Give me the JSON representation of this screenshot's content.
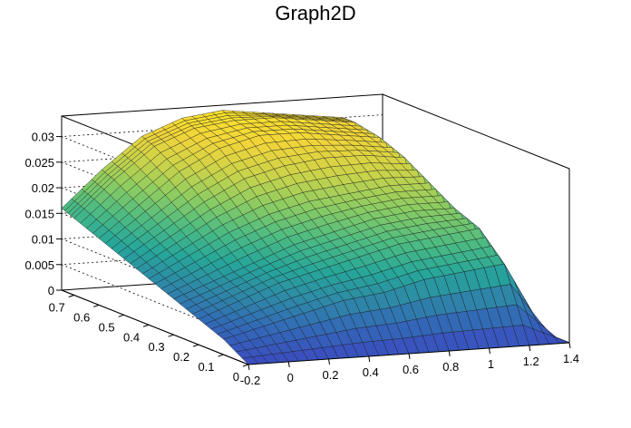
{
  "chart_data": {
    "type": "surface",
    "title": "Graph2D",
    "xlabel": "",
    "ylabel": "",
    "zlabel": "",
    "xlim": [
      -0.2,
      1.4
    ],
    "ylim": [
      0,
      0.75
    ],
    "zlim": [
      0,
      0.034
    ],
    "x_ticks": [
      "-0.2",
      "0",
      "0.2",
      "0.4",
      "0.6",
      "0.8",
      "1",
      "1.2",
      "1.4"
    ],
    "y_ticks": [
      "0",
      "0.1",
      "0.2",
      "0.3",
      "0.4",
      "0.5",
      "0.6",
      "0.7"
    ],
    "z_ticks": [
      "0",
      "0.005",
      "0.01",
      "0.015",
      "0.02",
      "0.025",
      "0.03"
    ],
    "grid": true,
    "colormap": "viridis",
    "x_values": [
      -0.2,
      0,
      0.2,
      0.4,
      0.6,
      0.8,
      1.0,
      1.2,
      1.4
    ],
    "y_values": [
      0,
      0.1,
      0.2,
      0.3,
      0.4,
      0.5,
      0.6,
      0.7,
      0.75
    ],
    "z_values": [
      [
        0.0,
        0.0,
        0.0,
        0.0,
        0.0,
        0.0,
        0.0,
        0.0,
        0.0
      ],
      [
        0.003,
        0.005,
        0.007,
        0.009,
        0.01,
        0.012,
        0.013,
        0.014,
        0.0
      ],
      [
        0.005,
        0.008,
        0.011,
        0.013,
        0.015,
        0.017,
        0.018,
        0.019,
        0.0
      ],
      [
        0.007,
        0.01,
        0.013,
        0.016,
        0.018,
        0.02,
        0.021,
        0.021,
        0.0
      ],
      [
        0.009,
        0.013,
        0.017,
        0.02,
        0.022,
        0.023,
        0.024,
        0.024,
        0.0
      ],
      [
        0.011,
        0.016,
        0.021,
        0.025,
        0.027,
        0.028,
        0.028,
        0.027,
        0.0
      ],
      [
        0.013,
        0.019,
        0.025,
        0.029,
        0.031,
        0.031,
        0.03,
        0.029,
        0.0
      ],
      [
        0.015,
        0.022,
        0.028,
        0.031,
        0.032,
        0.032,
        0.031,
        0.03,
        0.0
      ],
      [
        0.016,
        0.023,
        0.029,
        0.032,
        0.033,
        0.032,
        0.031,
        0.03,
        0.0
      ]
    ]
  }
}
